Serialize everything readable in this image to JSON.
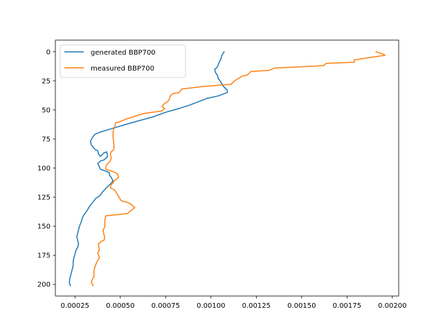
{
  "chart_data": {
    "type": "line",
    "title": "",
    "xlabel": "",
    "ylabel": "",
    "xlim": [
      0.000142,
      0.002035
    ],
    "ylim": [
      210,
      -10
    ],
    "y_inverted": true,
    "grid": false,
    "legend_placement": "top-left",
    "x_ticks": [
      0.00025,
      0.0005,
      0.00075,
      0.001,
      0.00125,
      0.0015,
      0.00175,
      0.002
    ],
    "x_tick_labels": [
      "0.00025",
      "0.00050",
      "0.00075",
      "0.00100",
      "0.00125",
      "0.00150",
      "0.00175",
      "0.00200"
    ],
    "y_ticks": [
      0,
      25,
      50,
      75,
      100,
      125,
      150,
      175,
      200
    ],
    "y_tick_labels": [
      "0",
      "25",
      "50",
      "75",
      "100",
      "125",
      "150",
      "175",
      "200"
    ],
    "series": [
      {
        "name": "generated BBP700",
        "color": "#1f77b4",
        "x": [
          0.001072,
          0.00106,
          0.001055,
          0.001045,
          0.001038,
          0.00103,
          0.00102,
          0.001025,
          0.001035,
          0.00104,
          0.00105,
          0.001058,
          0.00107,
          0.00109,
          0.00109,
          0.00104,
          0.00098,
          0.00093,
          0.00088,
          0.00082,
          0.00075,
          0.00068,
          0.00061,
          0.00054,
          0.000455,
          0.00039,
          0.00036,
          0.000345,
          0.000335,
          0.00034,
          0.00036,
          0.000375,
          0.00038,
          0.00039,
          0.00041,
          0.000425,
          0.00043,
          0.00041,
          0.00039,
          0.000375,
          0.000385,
          0.00039,
          0.00041,
          0.000425,
          0.00044,
          0.00044,
          0.00045,
          0.00046,
          0.00045,
          0.00043,
          0.000405,
          0.000385,
          0.000365,
          0.00035,
          0.00033,
          0.000315,
          0.0003,
          0.00029,
          0.000285,
          0.000275,
          0.00027,
          0.000265,
          0.00026,
          0.000265,
          0.00027,
          0.000265,
          0.000255,
          0.00025,
          0.000245,
          0.00024,
          0.00024,
          0.000235,
          0.00023,
          0.000225,
          0.00022,
          0.00022,
          0.000225
        ],
        "y": [
          0,
          3,
          6,
          9,
          12,
          14,
          15,
          18,
          20,
          23,
          25,
          27,
          30,
          33,
          35,
          38,
          40,
          43,
          46,
          49,
          52,
          56,
          59,
          62,
          66,
          69,
          71,
          74,
          77,
          80,
          84,
          85,
          88,
          90,
          87,
          86,
          90,
          93,
          94,
          96,
          99,
          101,
          102,
          103,
          104,
          106,
          108,
          111,
          113,
          116,
          120,
          124,
          126,
          129,
          133,
          137,
          140,
          143,
          146,
          150,
          153,
          156,
          159,
          162,
          165,
          168,
          171,
          174,
          177,
          180,
          184,
          187,
          190,
          193,
          196,
          199,
          201
        ]
      },
      {
        "name": "measured BBP700",
        "color": "#ff7f0e",
        "x": [
          0.00191,
          0.00195,
          0.00196,
          0.00179,
          0.00179,
          0.001635,
          0.00162,
          0.00135,
          0.00132,
          0.00122,
          0.0012,
          0.00117,
          0.00113,
          0.00111,
          0.00095,
          0.00084,
          0.000825,
          0.00079,
          0.000775,
          0.00077,
          0.00076,
          0.00074,
          0.00073,
          0.000745,
          0.000725,
          0.00063,
          0.00061,
          0.00057,
          0.00053,
          0.0005,
          0.000475,
          0.00047,
          0.000465,
          0.00046,
          0.00046,
          0.000465,
          0.000465,
          0.00045,
          0.000445,
          0.00045,
          0.000445,
          0.00043,
          0.00042,
          0.00042,
          0.00046,
          0.000485,
          0.00049,
          0.000465,
          0.00046,
          0.00045,
          0.000445,
          0.00047,
          0.000505,
          0.00055,
          0.00058,
          0.000555,
          0.00054,
          0.00049,
          0.00042,
          0.000415,
          0.000415,
          0.000405,
          0.00041,
          0.000415,
          0.00041,
          0.000395,
          0.00038,
          0.00038,
          0.000385,
          0.000375,
          0.000385,
          0.00037,
          0.00036,
          0.000355,
          0.000355,
          0.000345,
          0.00034,
          0.00035
        ],
        "y": [
          0,
          2,
          3,
          7,
          9,
          10,
          12,
          14,
          16,
          17,
          20,
          21,
          25,
          28,
          30,
          32,
          35,
          36,
          38,
          41,
          43,
          45,
          47,
          49,
          51,
          53,
          54,
          56,
          58,
          60,
          61,
          64,
          66,
          69,
          74,
          79,
          84,
          86,
          88,
          91,
          94,
          96,
          99,
          101,
          103,
          105,
          108,
          111,
          113,
          114,
          117,
          119,
          128,
          130,
          134,
          137,
          139,
          140,
          141,
          145,
          150,
          154,
          157,
          160,
          162,
          163,
          165,
          167,
          170,
          173,
          177,
          181,
          185,
          188,
          193,
          196,
          198,
          201
        ]
      }
    ]
  }
}
